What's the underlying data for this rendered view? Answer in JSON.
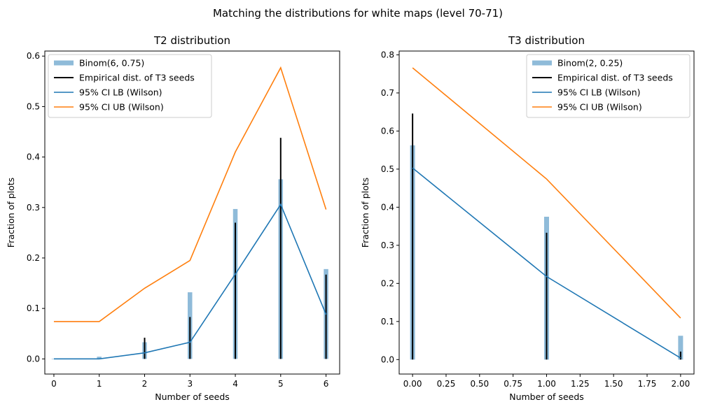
{
  "figure": {
    "suptitle": "Matching the distributions for white maps (level 70-71)"
  },
  "colors": {
    "binom": "#1f77b4",
    "empirical": "#000000",
    "ci_lb": "#1f77b4",
    "ci_ub": "#ff7f0e"
  },
  "chart_data": [
    {
      "type": "bar",
      "title": "T2 distribution",
      "xlabel": "Number of seeds",
      "ylabel": "Fraction of plots",
      "xlim": [
        -0.2,
        6.3
      ],
      "ylim": [
        -0.03,
        0.61
      ],
      "xticks": [
        0,
        1,
        2,
        3,
        4,
        5,
        6
      ],
      "xtick_labels": [
        "0",
        "1",
        "2",
        "3",
        "4",
        "5",
        "6"
      ],
      "yticks": [
        0.0,
        0.1,
        0.2,
        0.3,
        0.4,
        0.5,
        0.6
      ],
      "ytick_labels": [
        "0.0",
        "0.1",
        "0.2",
        "0.3",
        "0.4",
        "0.5",
        "0.6"
      ],
      "legend_position": "top-left",
      "series": [
        {
          "name": "Binom(6, 0.75)",
          "kind": "bar",
          "x": [
            0,
            1,
            2,
            3,
            4,
            5,
            6
          ],
          "values": [
            0.0002,
            0.0044,
            0.033,
            0.132,
            0.297,
            0.356,
            0.178
          ]
        },
        {
          "name": "Empirical dist. of T3 seeds",
          "kind": "vline",
          "x": [
            0,
            1,
            2,
            3,
            4,
            5,
            6
          ],
          "values": [
            0.0,
            0.0,
            0.042,
            0.083,
            0.27,
            0.438,
            0.167
          ]
        },
        {
          "name": "95% CI LB (Wilson)",
          "kind": "line",
          "x": [
            0,
            1,
            2,
            3,
            4,
            5,
            6
          ],
          "values": [
            0.0,
            0.0,
            0.012,
            0.033,
            0.168,
            0.306,
            0.088
          ]
        },
        {
          "name": "95% CI UB (Wilson)",
          "kind": "line",
          "x": [
            0,
            1,
            2,
            3,
            4,
            5,
            6
          ],
          "values": [
            0.074,
            0.074,
            0.14,
            0.195,
            0.41,
            0.577,
            0.296
          ]
        }
      ]
    },
    {
      "type": "bar",
      "title": "T3 distribution",
      "xlabel": "Number of seeds",
      "ylabel": "Fraction of plots",
      "xlim": [
        -0.1,
        2.1
      ],
      "ylim": [
        -0.038,
        0.81
      ],
      "xticks": [
        0.0,
        0.25,
        0.5,
        0.75,
        1.0,
        1.25,
        1.5,
        1.75,
        2.0
      ],
      "xtick_labels": [
        "0.00",
        "0.25",
        "0.50",
        "0.75",
        "1.00",
        "1.25",
        "1.50",
        "1.75",
        "2.00"
      ],
      "yticks": [
        0.0,
        0.1,
        0.2,
        0.3,
        0.4,
        0.5,
        0.6,
        0.7,
        0.8
      ],
      "ytick_labels": [
        "0.0",
        "0.1",
        "0.2",
        "0.3",
        "0.4",
        "0.5",
        "0.6",
        "0.7",
        "0.8"
      ],
      "legend_position": "top-right",
      "series": [
        {
          "name": "Binom(2, 0.25)",
          "kind": "bar",
          "x": [
            0,
            1,
            2
          ],
          "values": [
            0.5625,
            0.375,
            0.0625
          ]
        },
        {
          "name": "Empirical dist. of T3 seeds",
          "kind": "vline",
          "x": [
            0,
            1,
            2
          ],
          "values": [
            0.646,
            0.333,
            0.021
          ]
        },
        {
          "name": "95% CI LB (Wilson)",
          "kind": "line",
          "x": [
            0,
            1,
            2
          ],
          "values": [
            0.503,
            0.218,
            0.004
          ]
        },
        {
          "name": "95% CI UB (Wilson)",
          "kind": "line",
          "x": [
            0,
            1,
            2
          ],
          "values": [
            0.766,
            0.474,
            0.109
          ]
        }
      ]
    }
  ]
}
